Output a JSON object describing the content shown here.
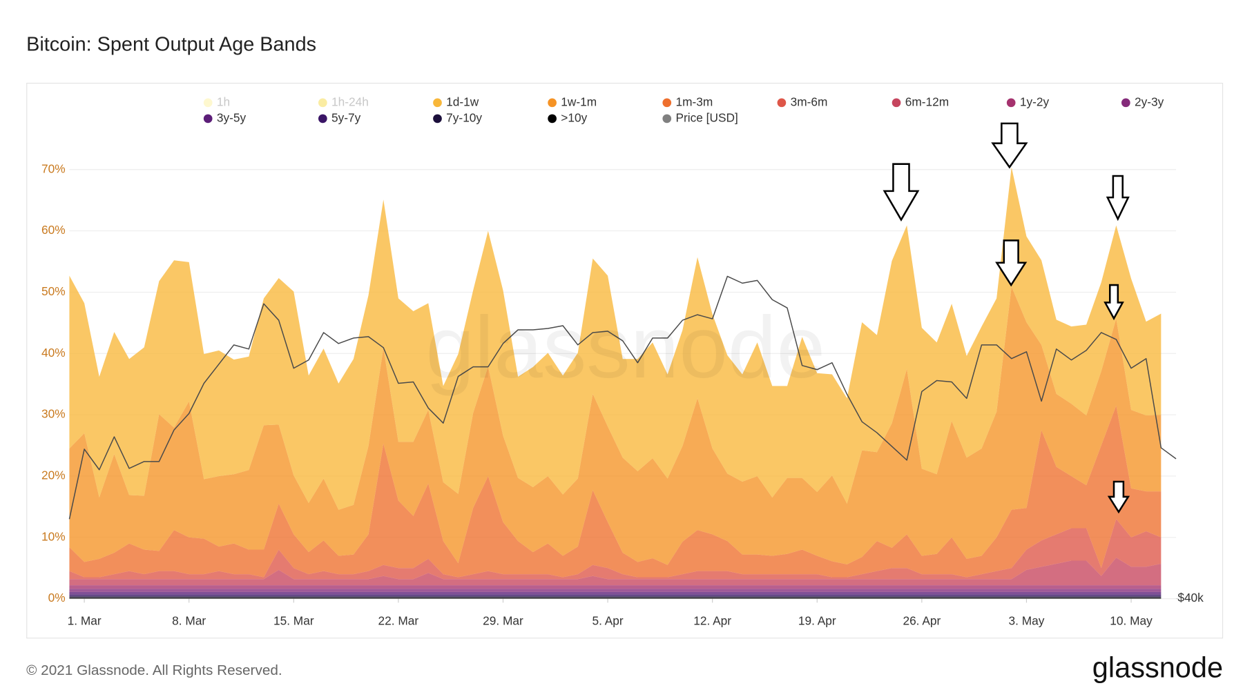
{
  "chart_data": {
    "type": "area",
    "stacked": true,
    "title": "Bitcoin: Spent Output Age Bands",
    "watermark": "glassnode",
    "x": [
      "28. Feb",
      "1. Mar",
      "2. Mar",
      "3. Mar",
      "4. Mar",
      "5. Mar",
      "6. Mar",
      "7. Mar",
      "8. Mar",
      "9. Mar",
      "10. Mar",
      "11. Mar",
      "12. Mar",
      "13. Mar",
      "14. Mar",
      "15. Mar",
      "16. Mar",
      "17. Mar",
      "18. Mar",
      "19. Mar",
      "20. Mar",
      "21. Mar",
      "22. Mar",
      "23. Mar",
      "24. Mar",
      "25. Mar",
      "26. Mar",
      "27. Mar",
      "28. Mar",
      "29. Mar",
      "30. Mar",
      "31. Mar",
      "1. Apr",
      "2. Apr",
      "3. Apr",
      "4. Apr",
      "5. Apr",
      "6. Apr",
      "7. Apr",
      "8. Apr",
      "9. Apr",
      "10. Apr",
      "11. Apr",
      "12. Apr",
      "13. Apr",
      "14. Apr",
      "15. Apr",
      "16. Apr",
      "17. Apr",
      "18. Apr",
      "19. Apr",
      "20. Apr",
      "21. Apr",
      "22. Apr",
      "23. Apr",
      "24. Apr",
      "25. Apr",
      "26. Apr",
      "27. Apr",
      "28. Apr",
      "29. Apr",
      "30. Apr",
      "1. May",
      "2. May",
      "3. May",
      "4. May",
      "5. May",
      "6. May",
      "7. May",
      "8. May",
      "9. May",
      "10. May",
      "11. May",
      "12. May",
      "13. May"
    ],
    "xticks": [
      "1. Mar",
      "8. Mar",
      "15. Mar",
      "22. Mar",
      "29. Mar",
      "5. Apr",
      "12. Apr",
      "19. Apr",
      "26. Apr",
      "3. May",
      "10. May"
    ],
    "ylim": [
      0,
      80
    ],
    "yticks": [
      {
        "value": 0,
        "label": "0%"
      },
      {
        "value": 10,
        "label": "10%"
      },
      {
        "value": 20,
        "label": "20%"
      },
      {
        "value": 30,
        "label": "30%"
      },
      {
        "value": 40,
        "label": "40%"
      },
      {
        "value": 50,
        "label": "50%"
      },
      {
        "value": 60,
        "label": "60%"
      },
      {
        "value": 70,
        "label": "70%"
      }
    ],
    "y2lim": [
      40000,
      75750
    ],
    "y2ticks": [
      {
        "value": 40000,
        "label": "$40k"
      }
    ],
    "grid": true,
    "series": [
      {
        "name": "1h",
        "color": "#fdf3a8",
        "hidden": true
      },
      {
        "name": "1h-24h",
        "color": "#f6dd55",
        "hidden": true
      },
      {
        "name": "1d-1w",
        "color": "#f8b73a",
        "values": [
          28.2,
          21.2,
          19.7,
          19.9,
          22.2,
          24.2,
          21.7,
          27.3,
          22.7,
          20.4,
          20.5,
          18.7,
          18.5,
          20.7,
          23.9,
          30.0,
          20.8,
          21.2,
          20.6,
          23.8,
          24.6,
          24.2,
          23.4,
          21.3,
          17.4,
          15.7,
          22.8,
          20.0,
          22.1,
          23.7,
          16.5,
          19.6,
          20.1,
          19.4,
          20.5,
          22.1,
          24.6,
          16.1,
          18.3,
          18.9,
          17.0,
          18.9,
          23.0,
          21.9,
          19.3,
          17.5,
          21.8,
          18.2,
          15.0,
          23.0,
          19.4,
          16.5,
          17.2,
          20.9,
          19.1,
          26.5,
          23.4,
          23.0,
          21.5,
          19.1,
          16.6,
          19.9,
          18.5,
          19.5,
          14.0,
          13.8,
          12.1,
          12.6,
          14.8,
          14.5,
          15.2,
          21.4,
          15.3,
          16.5,
          null
        ]
      },
      {
        "name": "1w-1m",
        "color": "#f59325",
        "values": [
          16.1,
          21.0,
          10.0,
          16.1,
          7.9,
          8.8,
          22.3,
          16.7,
          22.2,
          9.7,
          11.5,
          11.3,
          13.0,
          20.3,
          12.9,
          9.6,
          8.0,
          10.1,
          7.5,
          8.1,
          14.4,
          15.6,
          9.6,
          12.1,
          12.0,
          9.6,
          11.3,
          15.5,
          17.9,
          14.1,
          10.3,
          10.6,
          11.0,
          10.0,
          11.1,
          15.7,
          15.6,
          15.5,
          14.8,
          16.3,
          14.1,
          15.6,
          21.5,
          14.0,
          11.0,
          11.9,
          12.8,
          9.5,
          12.4,
          11.7,
          10.4,
          14.0,
          9.9,
          17.4,
          14.5,
          20.3,
          27.0,
          14.2,
          13.0,
          19.0,
          16.5,
          17.5,
          20.5,
          36.4,
          30.3,
          13.9,
          11.9,
          11.8,
          11.4,
          12.1,
          14.2,
          12.8,
          12.4,
          12.5,
          null
        ]
      },
      {
        "name": "1m-3m",
        "color": "#ee6f2d",
        "values": [
          3.9,
          2.5,
          3.0,
          3.5,
          4.5,
          4.0,
          3.3,
          6.7,
          6.0,
          5.8,
          4.0,
          5.0,
          4.0,
          4.5,
          7.5,
          5.5,
          3.6,
          5.0,
          3.0,
          3.2,
          6.0,
          19.8,
          11.0,
          8.5,
          12.3,
          5.4,
          2.3,
          10.8,
          15.5,
          8.5,
          5.4,
          3.6,
          5.0,
          3.5,
          4.5,
          12.2,
          7.5,
          3.5,
          2.5,
          3.1,
          2.0,
          5.3,
          6.7,
          6.0,
          4.9,
          3.2,
          3.2,
          3.0,
          3.3,
          4.0,
          3.0,
          2.6,
          2.1,
          2.8,
          4.9,
          3.3,
          5.5,
          3.0,
          3.3,
          6.0,
          3.0,
          3.0,
          5.5,
          9.5,
          6.8,
          18.0,
          11.0,
          8.5,
          7.0,
          20.0,
          18.5,
          8.0,
          6.5,
          7.5,
          null
        ]
      },
      {
        "name": "3m-6m",
        "color": "#de5648",
        "values": [
          1.3,
          0.3,
          0.3,
          0.8,
          1.3,
          0.8,
          1.3,
          1.3,
          0.8,
          0.8,
          1.3,
          0.8,
          0.8,
          0.3,
          3.3,
          1.8,
          0.8,
          1.3,
          0.8,
          0.8,
          1.3,
          1.8,
          1.8,
          1.8,
          2.3,
          0.8,
          0.3,
          0.8,
          1.3,
          0.8,
          0.8,
          0.8,
          0.8,
          0.3,
          0.8,
          1.8,
          1.8,
          0.8,
          0.3,
          0.3,
          0.3,
          0.8,
          1.3,
          1.3,
          1.3,
          0.8,
          0.8,
          0.8,
          0.8,
          0.8,
          0.8,
          0.3,
          0.3,
          0.8,
          1.3,
          1.8,
          1.8,
          0.8,
          0.8,
          0.8,
          0.3,
          0.8,
          1.3,
          1.8,
          3.3,
          4.3,
          4.8,
          5.3,
          5.3,
          1.3,
          6.3,
          4.8,
          5.8,
          4.3,
          null
        ]
      },
      {
        "name": "6m-12m",
        "color": "#c6455e",
        "values": [
          1.0,
          1.0,
          1.0,
          1.0,
          1.0,
          1.0,
          1.0,
          1.0,
          1.0,
          1.0,
          1.0,
          1.0,
          1.0,
          1.0,
          2.5,
          1.0,
          1.0,
          1.0,
          1.0,
          1.0,
          1.0,
          1.5,
          1.0,
          1.0,
          2.0,
          1.0,
          1.0,
          1.0,
          1.0,
          1.0,
          1.0,
          1.0,
          1.0,
          1.0,
          1.0,
          1.5,
          1.0,
          1.0,
          1.0,
          1.0,
          1.0,
          1.0,
          1.0,
          1.0,
          1.0,
          1.0,
          1.0,
          1.0,
          1.0,
          1.0,
          1.0,
          1.0,
          1.0,
          1.0,
          1.0,
          1.0,
          1.0,
          1.0,
          1.0,
          1.0,
          1.0,
          1.0,
          1.0,
          1.0,
          2.5,
          3.0,
          3.5,
          4.0,
          4.0,
          1.5,
          4.5,
          3.0,
          3.0,
          3.5,
          null
        ]
      },
      {
        "name": "1y-2y",
        "color": "#a5326e",
        "values": [
          0.6,
          0.6,
          0.6,
          0.6,
          0.6,
          0.6,
          0.6,
          0.6,
          0.6,
          0.6,
          0.6,
          0.6,
          0.6,
          0.6,
          0.6,
          0.6,
          0.6,
          0.6,
          0.6,
          0.6,
          0.6,
          0.6,
          0.6,
          0.6,
          0.6,
          0.6,
          0.6,
          0.6,
          0.6,
          0.6,
          0.6,
          0.6,
          0.6,
          0.6,
          0.6,
          0.6,
          0.6,
          0.6,
          0.6,
          0.6,
          0.6,
          0.6,
          0.6,
          0.6,
          0.6,
          0.6,
          0.6,
          0.6,
          0.6,
          0.6,
          0.6,
          0.6,
          0.6,
          0.6,
          0.6,
          0.6,
          0.6,
          0.6,
          0.6,
          0.6,
          0.6,
          0.6,
          0.6,
          0.6,
          0.6,
          0.6,
          0.6,
          0.6,
          0.6,
          0.6,
          0.6,
          0.6,
          0.6,
          0.6,
          null
        ]
      },
      {
        "name": "2y-3y",
        "color": "#842a7a",
        "values": [
          0.5,
          0.5,
          0.5,
          0.5,
          0.5,
          0.5,
          0.5,
          0.5,
          0.5,
          0.5,
          0.5,
          0.5,
          0.5,
          0.5,
          0.5,
          0.5,
          0.5,
          0.5,
          0.5,
          0.5,
          0.5,
          0.5,
          0.5,
          0.5,
          0.5,
          0.5,
          0.5,
          0.5,
          0.5,
          0.5,
          0.5,
          0.5,
          0.5,
          0.5,
          0.5,
          0.5,
          0.5,
          0.5,
          0.5,
          0.5,
          0.5,
          0.5,
          0.5,
          0.5,
          0.5,
          0.5,
          0.5,
          0.5,
          0.5,
          0.5,
          0.5,
          0.5,
          0.5,
          0.5,
          0.5,
          0.5,
          0.5,
          0.5,
          0.5,
          0.5,
          0.5,
          0.5,
          0.5,
          0.5,
          0.5,
          0.5,
          0.5,
          0.5,
          0.5,
          0.5,
          0.5,
          0.5,
          0.5,
          0.5,
          null
        ]
      },
      {
        "name": "3y-5y",
        "color": "#5c1e78",
        "values": [
          0.4,
          0.4,
          0.4,
          0.4,
          0.4,
          0.4,
          0.4,
          0.4,
          0.4,
          0.4,
          0.4,
          0.4,
          0.4,
          0.4,
          0.4,
          0.4,
          0.4,
          0.4,
          0.4,
          0.4,
          0.4,
          0.4,
          0.4,
          0.4,
          0.4,
          0.4,
          0.4,
          0.4,
          0.4,
          0.4,
          0.4,
          0.4,
          0.4,
          0.4,
          0.4,
          0.4,
          0.4,
          0.4,
          0.4,
          0.4,
          0.4,
          0.4,
          0.4,
          0.4,
          0.4,
          0.4,
          0.4,
          0.4,
          0.4,
          0.4,
          0.4,
          0.4,
          0.4,
          0.4,
          0.4,
          0.4,
          0.4,
          0.4,
          0.4,
          0.4,
          0.4,
          0.4,
          0.4,
          0.4,
          0.4,
          0.4,
          0.4,
          0.4,
          0.4,
          0.4,
          0.4,
          0.4,
          0.4,
          0.4,
          null
        ]
      },
      {
        "name": "5y-7y",
        "color": "#3a1566",
        "values": [
          0.3,
          0.3,
          0.3,
          0.3,
          0.3,
          0.3,
          0.3,
          0.3,
          0.3,
          0.3,
          0.3,
          0.3,
          0.3,
          0.3,
          0.3,
          0.3,
          0.3,
          0.3,
          0.3,
          0.3,
          0.3,
          0.3,
          0.3,
          0.3,
          0.3,
          0.3,
          0.3,
          0.3,
          0.3,
          0.3,
          0.3,
          0.3,
          0.3,
          0.3,
          0.3,
          0.3,
          0.3,
          0.3,
          0.3,
          0.3,
          0.3,
          0.3,
          0.3,
          0.3,
          0.3,
          0.3,
          0.3,
          0.3,
          0.3,
          0.3,
          0.3,
          0.3,
          0.3,
          0.3,
          0.3,
          0.3,
          0.3,
          0.3,
          0.3,
          0.3,
          0.3,
          0.3,
          0.3,
          0.3,
          0.3,
          0.3,
          0.3,
          0.3,
          0.3,
          0.3,
          0.3,
          0.3,
          0.3,
          0.3,
          null
        ]
      },
      {
        "name": "7y-10y",
        "color": "#1b0f3b",
        "values": [
          0.2,
          0.2,
          0.2,
          0.2,
          0.2,
          0.2,
          0.2,
          0.2,
          0.2,
          0.2,
          0.2,
          0.2,
          0.2,
          0.2,
          0.2,
          0.2,
          0.2,
          0.2,
          0.2,
          0.2,
          0.2,
          0.2,
          0.2,
          0.2,
          0.2,
          0.2,
          0.2,
          0.2,
          0.2,
          0.2,
          0.2,
          0.2,
          0.2,
          0.2,
          0.2,
          0.2,
          0.2,
          0.2,
          0.2,
          0.2,
          0.2,
          0.2,
          0.2,
          0.2,
          0.2,
          0.2,
          0.2,
          0.2,
          0.2,
          0.2,
          0.2,
          0.2,
          0.2,
          0.2,
          0.2,
          0.2,
          0.2,
          0.2,
          0.2,
          0.2,
          0.2,
          0.2,
          0.2,
          0.2,
          0.2,
          0.2,
          0.2,
          0.2,
          0.2,
          0.2,
          0.2,
          0.2,
          0.2,
          0.2,
          null
        ]
      },
      {
        "name": ">10y",
        "color": "#000000",
        "values": [
          0.2,
          0.2,
          0.2,
          0.2,
          0.2,
          0.2,
          0.2,
          0.2,
          0.2,
          0.2,
          0.2,
          0.2,
          0.2,
          0.2,
          0.2,
          0.2,
          0.2,
          0.2,
          0.2,
          0.2,
          0.2,
          0.2,
          0.2,
          0.2,
          0.2,
          0.2,
          0.2,
          0.2,
          0.2,
          0.2,
          0.2,
          0.2,
          0.2,
          0.2,
          0.2,
          0.2,
          0.2,
          0.2,
          0.2,
          0.2,
          0.2,
          0.2,
          0.2,
          0.2,
          0.2,
          0.2,
          0.2,
          0.2,
          0.2,
          0.2,
          0.2,
          0.2,
          0.2,
          0.2,
          0.2,
          0.2,
          0.2,
          0.2,
          0.2,
          0.2,
          0.2,
          0.2,
          0.2,
          0.2,
          0.2,
          0.2,
          0.2,
          0.2,
          0.2,
          0.2,
          0.2,
          0.2,
          0.2,
          0.2,
          null
        ]
      },
      {
        "name": "Price [USD]",
        "color": "#808080",
        "axis": "y2",
        "line_color": "#4a4a4a",
        "values": [
          45800,
          50900,
          49400,
          51800,
          49500,
          50000,
          50000,
          52300,
          53500,
          55700,
          57100,
          58500,
          58200,
          61500,
          60300,
          56800,
          57400,
          59400,
          58600,
          59000,
          59100,
          58300,
          55700,
          55800,
          53900,
          52800,
          56200,
          56900,
          56900,
          58600,
          59600,
          59600,
          59700,
          59900,
          58500,
          59400,
          59500,
          58800,
          57200,
          59000,
          59000,
          60300,
          60700,
          60400,
          63500,
          63000,
          63200,
          61800,
          61200,
          57000,
          56700,
          57200,
          54900,
          52900,
          52100,
          51100,
          50100,
          55100,
          55900,
          55800,
          54600,
          58500,
          58500,
          57500,
          58000,
          54400,
          58200,
          57400,
          58100,
          59400,
          58900,
          56800,
          57500,
          51000,
          50200
        ]
      }
    ]
  },
  "footer": {
    "copyright": "© 2021 Glassnode. All Rights Reserved.",
    "logo": "glassnode"
  }
}
